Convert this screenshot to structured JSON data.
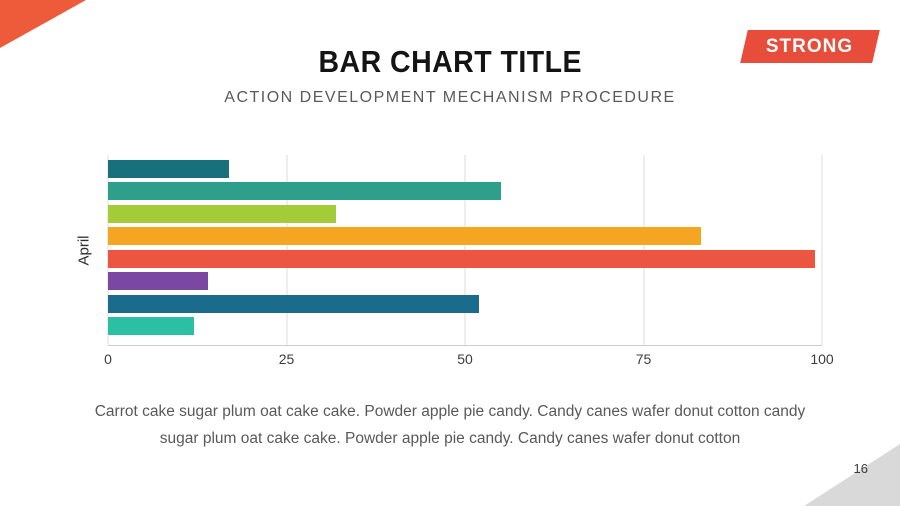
{
  "slide": {
    "title": "BAR CHART TITLE",
    "subtitle": "ACTION DEVELOPMENT MECHANISM PROCEDURE",
    "badge_label": "STRONG",
    "page_number": "16"
  },
  "caption": {
    "lines": [
      "Carrot cake sugar plum oat cake cake. Powder apple pie candy. Candy canes wafer donut cotton candy",
      "sugar plum oat cake cake. Powder apple pie candy. Candy canes wafer donut cotton"
    ]
  },
  "theme": {
    "accent-red": "#e84c3a",
    "corner-orange": "#ee5b3a",
    "corner-gray": "#d9d9d9",
    "grid-color": "#dddddd"
  },
  "chart_data": {
    "type": "bar",
    "orientation": "horizontal",
    "title": "",
    "category_label": "April",
    "xlim": [
      0,
      100
    ],
    "xticks": [
      0,
      25,
      50,
      75,
      100
    ],
    "grid": true,
    "legend": "none",
    "bars": [
      {
        "value": 17,
        "color": "#18707d"
      },
      {
        "value": 55,
        "color": "#2d9f8b"
      },
      {
        "value": 32,
        "color": "#a4cc39"
      },
      {
        "value": 83,
        "color": "#f6a523"
      },
      {
        "value": 99,
        "color": "#ec5540"
      },
      {
        "value": 14,
        "color": "#7c46a3"
      },
      {
        "value": 52,
        "color": "#1b6b8c"
      },
      {
        "value": 12,
        "color": "#2bbfa4"
      }
    ]
  }
}
